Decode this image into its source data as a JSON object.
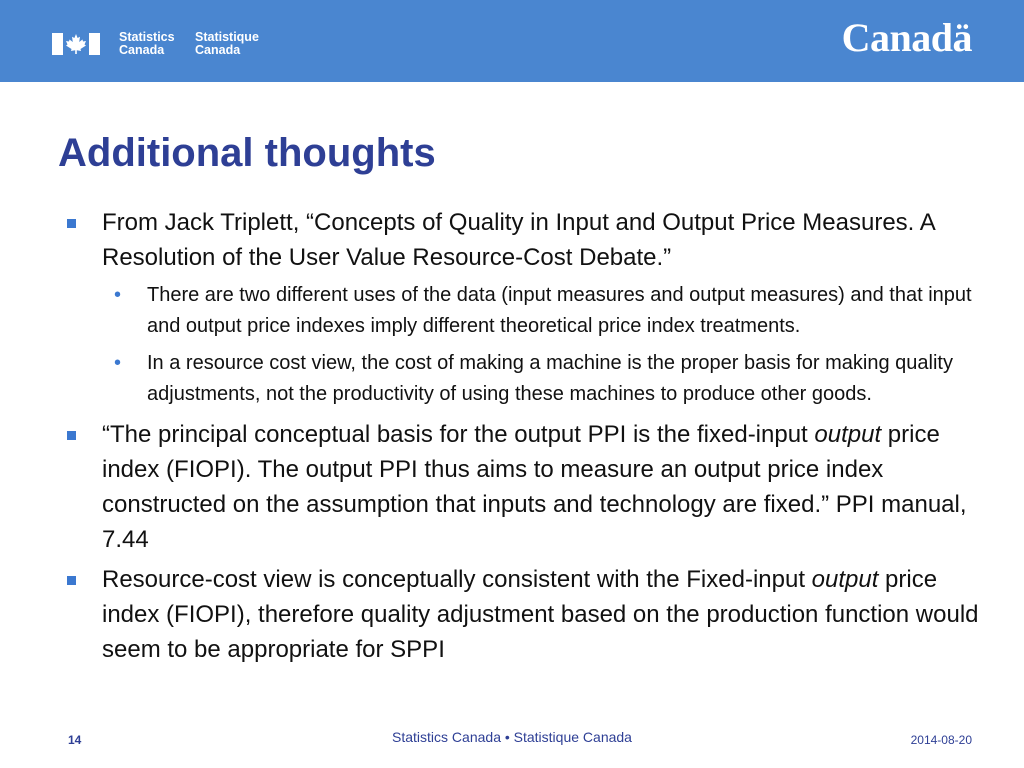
{
  "header": {
    "wordmark_en": [
      "Statistics",
      "Canada"
    ],
    "wordmark_fr": [
      "Statistique",
      "Canada"
    ],
    "canada_wordmark": "Canadä",
    "background_color": "#4a86d0",
    "flag_color": "#ffffff"
  },
  "slide": {
    "title": "Additional thoughts",
    "title_color": "#2e3f95",
    "bullet_color": "#3b78d0",
    "bullets": [
      {
        "text": "From Jack Triplett, “Concepts of Quality in Input and Output Price Measures. A Resolution of the User Value Resource-Cost Debate.”",
        "sub": [
          "There are two different uses of the data (input measures and output measures) and that input and output price indexes imply different theoretical price index treatments.",
          "In a resource cost view, the cost of making a machine is the proper basis for making quality adjustments, not the productivity of using these machines to produce other goods."
        ]
      },
      {
        "before": "“The principal conceptual basis for the output PPI is the fixed-input ",
        "italic": "output",
        "after": " price index (FIOPI).  The output PPI thus aims to measure an output price index constructed on the assumption that inputs and technology are fixed.” PPI manual, 7.44"
      },
      {
        "before": "Resource-cost view is conceptually consistent with the Fixed-input ",
        "italic": "output",
        "after": " price index (FIOPI), therefore quality adjustment based on the production function would seem to be appropriate for SPPI"
      }
    ]
  },
  "footer": {
    "page_number": "14",
    "center_text": "Statistics Canada • Statistique Canada",
    "date": "2014-08-20"
  }
}
